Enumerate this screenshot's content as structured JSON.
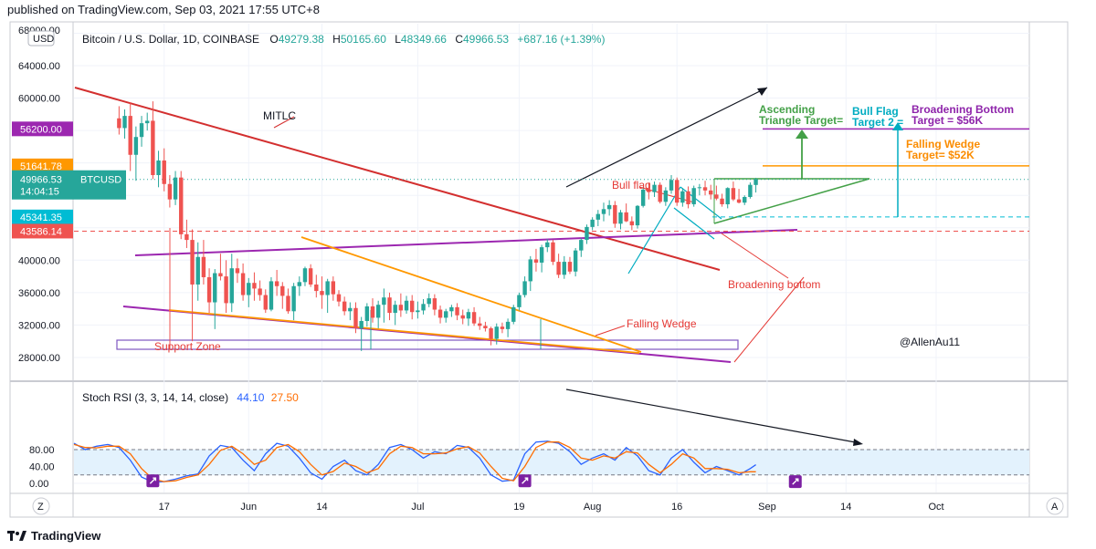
{
  "header": {
    "published": "published on TradingView.com, Sep 03, 2021 17:55 UTC+8"
  },
  "brand": {
    "name": "TradingView"
  },
  "currency_badge": "USD",
  "legend": {
    "symbol": "Bitcoin / U.S. Dollar, 1D, COINBASE",
    "o_label": "O",
    "o": "49279.38",
    "h_label": "H",
    "h": "50165.60",
    "l_label": "L",
    "l": "48349.66",
    "c_label": "C",
    "c": "49966.53",
    "change": "+687.16 (+1.39%)"
  },
  "price_axis": {
    "top_cut": "68000.00",
    "ticks": [
      "64000.00",
      "60000.00",
      "40000.00",
      "36000.00",
      "32000.00",
      "28000.00"
    ],
    "tick_values": [
      64000,
      60000,
      40000,
      36000,
      32000,
      28000
    ]
  },
  "price_tags": [
    {
      "label": "56200.00",
      "value": 56200,
      "color": "#9c27b0"
    },
    {
      "label": "51641.78",
      "value": 51641.78,
      "color": "#ff9800"
    },
    {
      "label": "49966.53",
      "value": 49966.53,
      "color": "#26a69a",
      "symbol": "BTCUSD",
      "countdown": "14:04:15"
    },
    {
      "label": "45341.35",
      "value": 45341.35,
      "color": "#00bcd4"
    },
    {
      "label": "43586.14",
      "value": 43586.14,
      "color": "#ef5350"
    }
  ],
  "annotations": {
    "mitlc": "MITLC",
    "bull_flag": "Bull flag",
    "broadening_bottom": "Broadening bottom",
    "falling_wedge": "Falling Wedge",
    "support_zone": "Support Zone",
    "author": "@AllenAu11",
    "asc_line1": "Ascending",
    "asc_line2": "Triangle Target=",
    "bullflag2_line1": "Bull Flag",
    "bullflag2_line2": "Target 2 =",
    "bb_target_line1": "Broadening Bottom",
    "bb_target_line2": "Target = $56K",
    "fw_target_line1": "Falling Wedge",
    "fw_target_line2": "Target= $52K"
  },
  "indicator": {
    "name": "Stoch RSI (3, 3, 14, 14, close)",
    "k_value": "44.10",
    "d_value": "27.50",
    "ticks": [
      "80.00",
      "40.00",
      "0.00"
    ],
    "tick_values": [
      80,
      40,
      0
    ],
    "band": [
      20,
      80
    ]
  },
  "time_axis": {
    "labels": [
      "17",
      "Jun",
      "14",
      "Jul",
      "19",
      "Aug",
      "16",
      "Sep",
      "14",
      "Oct"
    ],
    "label_days": [
      16,
      31,
      44,
      61,
      79,
      92,
      107,
      123,
      137,
      153
    ]
  },
  "corner_buttons": {
    "zoom": "Z",
    "auto": "A"
  },
  "chart_data": [
    {
      "type": "candlestick",
      "symbol": "BTCUSD",
      "title": "Bitcoin / U.S. Dollar, 1D, COINBASE",
      "x_unit": "days since May 1, 2021",
      "ylim": [
        26500,
        68000
      ],
      "xlim": [
        0,
        165
      ],
      "grid": true,
      "ohlc": [
        [
          8,
          57500,
          59000,
          55500,
          56300
        ],
        [
          9,
          56300,
          58600,
          55000,
          57800
        ],
        [
          10,
          57800,
          59500,
          51000,
          53000
        ],
        [
          11,
          53000,
          56500,
          49800,
          55200
        ],
        [
          12,
          55200,
          57800,
          54000,
          56900
        ],
        [
          13,
          56900,
          58200,
          56000,
          57200
        ],
        [
          14,
          57200,
          59600,
          50000,
          50500
        ],
        [
          15,
          50500,
          53500,
          49000,
          52300
        ],
        [
          16,
          52300,
          53800,
          48500,
          49400
        ],
        [
          17,
          49400,
          50500,
          46500,
          47500
        ],
        [
          18,
          47500,
          51000,
          46800,
          50200
        ],
        [
          19,
          50200,
          51000,
          42600,
          43200
        ],
        [
          20,
          43200,
          45000,
          41500,
          42500
        ],
        [
          21,
          42500,
          43800,
          30000,
          37000
        ],
        [
          22,
          37000,
          42200,
          35000,
          40400
        ],
        [
          23,
          40400,
          42500,
          37000,
          37900
        ],
        [
          24,
          37900,
          39000,
          33500,
          34800
        ],
        [
          25,
          34800,
          38900,
          31500,
          38400
        ],
        [
          26,
          38400,
          40800,
          37500,
          38000
        ],
        [
          27,
          38000,
          40000,
          33500,
          34700
        ],
        [
          28,
          34700,
          40800,
          33600,
          39000
        ],
        [
          29,
          39000,
          40200,
          37200,
          38400
        ],
        [
          30,
          38400,
          39600,
          35000,
          35700
        ],
        [
          31,
          35700,
          37800,
          34200,
          37200
        ],
        [
          32,
          37200,
          38500,
          35000,
          36500
        ],
        [
          33,
          36500,
          37500,
          35000,
          35700
        ],
        [
          34,
          35700,
          36400,
          33500,
          33900
        ],
        [
          35,
          33900,
          37900,
          33700,
          37400
        ],
        [
          36,
          37400,
          38800,
          35600,
          36800
        ],
        [
          37,
          36800,
          37300,
          34000,
          35600
        ],
        [
          38,
          35600,
          36500,
          33400,
          33700
        ],
        [
          39,
          33700,
          37200,
          32600,
          36800
        ],
        [
          40,
          36800,
          38000,
          35600,
          37300
        ],
        [
          41,
          37300,
          39200,
          36800,
          39000
        ],
        [
          42,
          39000,
          39500,
          36700,
          37000
        ],
        [
          43,
          37000,
          38200,
          35400,
          36200
        ],
        [
          44,
          36200,
          38000,
          34000,
          35700
        ],
        [
          45,
          35700,
          37700,
          33500,
          37400
        ],
        [
          46,
          37400,
          38000,
          35000,
          35800
        ],
        [
          47,
          35800,
          36300,
          34300,
          34900
        ],
        [
          48,
          34900,
          35500,
          33200,
          33700
        ],
        [
          49,
          33700,
          34800,
          32600,
          34100
        ],
        [
          50,
          34100,
          34800,
          31000,
          31600
        ],
        [
          51,
          31600,
          33000,
          28800,
          32500
        ],
        [
          52,
          32500,
          34700,
          31800,
          34300
        ],
        [
          53,
          34300,
          35300,
          32300,
          32900
        ],
        [
          54,
          32900,
          35000,
          31600,
          34500
        ],
        [
          55,
          34500,
          36500,
          32300,
          35400
        ],
        [
          56,
          35400,
          36000,
          32600,
          33500
        ],
        [
          57,
          33500,
          35000,
          32000,
          34500
        ],
        [
          58,
          34500,
          35900,
          33000,
          33800
        ],
        [
          59,
          33800,
          35600,
          33400,
          35000
        ],
        [
          60,
          35000,
          35700,
          32700,
          33600
        ],
        [
          61,
          33600,
          34900,
          32800,
          33800
        ],
        [
          62,
          33800,
          35200,
          33300,
          34600
        ],
        [
          63,
          34600,
          35900,
          34200,
          35300
        ],
        [
          64,
          35300,
          35800,
          33200,
          33900
        ],
        [
          65,
          33900,
          34400,
          32200,
          32900
        ],
        [
          66,
          32900,
          34000,
          32300,
          33700
        ],
        [
          67,
          33700,
          34500,
          33000,
          34200
        ],
        [
          68,
          34200,
          34700,
          32600,
          33200
        ],
        [
          69,
          33200,
          33900,
          32100,
          32800
        ],
        [
          70,
          32800,
          34000,
          31900,
          33600
        ],
        [
          71,
          33600,
          34200,
          31900,
          32200
        ],
        [
          72,
          32200,
          33000,
          31400,
          31900
        ],
        [
          73,
          31900,
          32400,
          31200,
          31600
        ],
        [
          74,
          31600,
          31800,
          29500,
          30300
        ],
        [
          75,
          30300,
          32200,
          29600,
          31800
        ],
        [
          76,
          31800,
          32300,
          31000,
          31500
        ],
        [
          77,
          31500,
          32800,
          30500,
          32400
        ],
        [
          78,
          32400,
          34500,
          32100,
          34200
        ],
        [
          79,
          34200,
          36000,
          33800,
          35700
        ],
        [
          80,
          35700,
          38000,
          35400,
          37400
        ],
        [
          81,
          37400,
          40500,
          36200,
          40100
        ],
        [
          82,
          40100,
          41400,
          38600,
          39700
        ],
        [
          83,
          39700,
          41900,
          38500,
          41600
        ],
        [
          84,
          41600,
          42600,
          41000,
          42200
        ],
        [
          85,
          42200,
          42500,
          39400,
          39800
        ],
        [
          86,
          39800,
          40800,
          37800,
          38200
        ],
        [
          87,
          38200,
          40500,
          37700,
          39800
        ],
        [
          88,
          39800,
          40400,
          38300,
          38600
        ],
        [
          89,
          38600,
          41500,
          38000,
          41200
        ],
        [
          90,
          41200,
          42700,
          40400,
          42500
        ],
        [
          91,
          42500,
          44400,
          42000,
          44100
        ],
        [
          92,
          44100,
          45300,
          43700,
          45000
        ],
        [
          93,
          45000,
          46200,
          44200,
          45700
        ],
        [
          94,
          45700,
          47100,
          44800,
          46300
        ],
        [
          95,
          46300,
          47400,
          45500,
          46800
        ],
        [
          96,
          46800,
          47300,
          44000,
          44500
        ],
        [
          97,
          44500,
          46200,
          43800,
          45900
        ],
        [
          98,
          45900,
          47000,
          44700,
          44800
        ],
        [
          99,
          44800,
          45400,
          43700,
          44300
        ],
        [
          100,
          44300,
          46800,
          43900,
          46700
        ],
        [
          101,
          46700,
          49000,
          46500,
          48700
        ],
        [
          102,
          48700,
          49600,
          47500,
          48400
        ],
        [
          103,
          48400,
          49700,
          47800,
          49300
        ],
        [
          104,
          49300,
          49600,
          47000,
          47200
        ],
        [
          105,
          47200,
          49000,
          46700,
          48600
        ],
        [
          106,
          48600,
          50500,
          48200,
          49900
        ],
        [
          107,
          49900,
          50200,
          46700,
          47100
        ],
        [
          108,
          47100,
          48900,
          46600,
          48500
        ],
        [
          109,
          48500,
          49100,
          46400,
          46900
        ],
        [
          110,
          46900,
          49200,
          46600,
          48900
        ],
        [
          111,
          48900,
          49400,
          48000,
          49000
        ],
        [
          112,
          49000,
          49800,
          48000,
          48600
        ],
        [
          113,
          48600,
          49300,
          47500,
          48100
        ],
        [
          114,
          48100,
          49200,
          47400,
          47600
        ],
        [
          115,
          47600,
          48200,
          46600,
          46900
        ],
        [
          116,
          46900,
          49000,
          46400,
          48900
        ],
        [
          117,
          48900,
          49700,
          47300,
          47500
        ],
        [
          118,
          47500,
          48800,
          47000,
          47100
        ],
        [
          119,
          47100,
          48000,
          46800,
          47800
        ],
        [
          120,
          47800,
          49600,
          47600,
          49300
        ],
        [
          121,
          49279.38,
          50165.6,
          48349.66,
          49966.53
        ]
      ]
    },
    {
      "type": "line",
      "title": "Stoch RSI (3, 3, 14, 14, close)",
      "ylim": [
        -8,
        100
      ],
      "band": [
        20,
        80
      ],
      "series": [
        {
          "name": "K",
          "color": "#2962ff",
          "x": [
            0,
            2,
            4,
            6,
            8,
            10,
            12,
            14,
            16,
            18,
            20,
            22,
            24,
            26,
            28,
            30,
            32,
            34,
            36,
            38,
            40,
            42,
            44,
            46,
            48,
            50,
            52,
            54,
            56,
            58,
            60,
            62,
            64,
            66,
            68,
            70,
            72,
            74,
            76,
            78,
            80,
            82,
            84,
            86,
            88,
            90,
            92,
            94,
            96,
            98,
            100,
            102,
            104,
            106,
            108,
            110,
            112,
            114,
            116,
            118,
            120,
            121
          ],
          "values": [
            95,
            80,
            88,
            92,
            85,
            55,
            15,
            3,
            4,
            10,
            18,
            22,
            65,
            90,
            85,
            55,
            30,
            70,
            95,
            88,
            60,
            25,
            10,
            40,
            55,
            30,
            20,
            45,
            85,
            92,
            80,
            60,
            75,
            70,
            90,
            85,
            60,
            20,
            5,
            8,
            70,
            98,
            100,
            95,
            75,
            45,
            60,
            70,
            55,
            85,
            65,
            30,
            20,
            60,
            80,
            50,
            25,
            40,
            30,
            20,
            35,
            44.1
          ]
        },
        {
          "name": "D",
          "color": "#ff6d00",
          "x": [
            0,
            2,
            4,
            6,
            8,
            10,
            12,
            14,
            16,
            18,
            20,
            22,
            24,
            26,
            28,
            30,
            32,
            34,
            36,
            38,
            40,
            42,
            44,
            46,
            48,
            50,
            52,
            54,
            56,
            58,
            60,
            62,
            64,
            66,
            68,
            70,
            72,
            74,
            76,
            78,
            80,
            82,
            84,
            86,
            88,
            90,
            92,
            94,
            96,
            98,
            100,
            102,
            104,
            106,
            108,
            110,
            112,
            114,
            116,
            118,
            120,
            121
          ],
          "values": [
            92,
            85,
            84,
            88,
            88,
            70,
            35,
            10,
            4,
            6,
            14,
            20,
            45,
            78,
            88,
            70,
            45,
            55,
            85,
            92,
            75,
            45,
            20,
            28,
            48,
            40,
            25,
            35,
            70,
            88,
            85,
            70,
            70,
            72,
            82,
            87,
            72,
            40,
            12,
            6,
            40,
            85,
            98,
            98,
            85,
            60,
            55,
            65,
            60,
            75,
            72,
            45,
            25,
            45,
            70,
            60,
            35,
            35,
            33,
            25,
            27.5,
            27.5
          ]
        }
      ]
    }
  ]
}
